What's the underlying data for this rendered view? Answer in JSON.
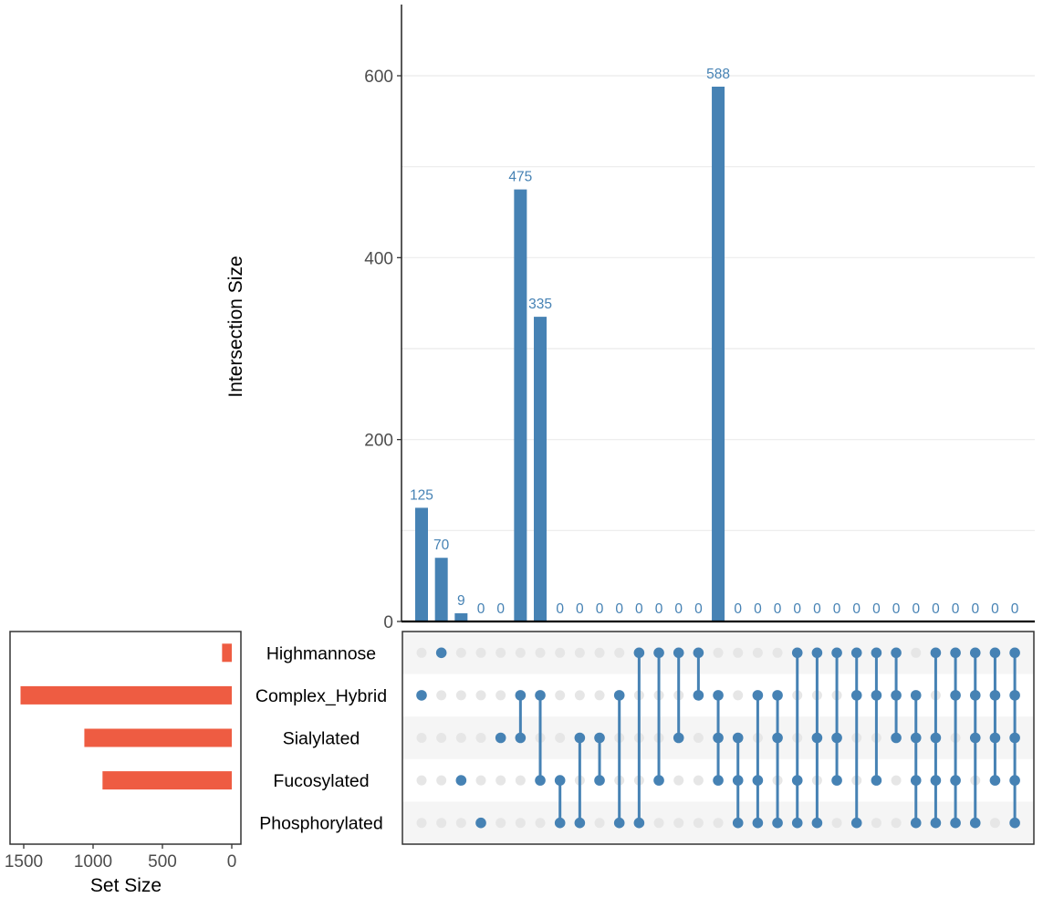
{
  "chart_data": {
    "type": "upset",
    "colors": {
      "intersection_bar": "#4682B4",
      "set_bar": "#EE5C42",
      "dot_active": "#4682B4",
      "dot_inactive": "#E6E6E6",
      "stripe": "#F5F5F5",
      "gridline": "#EBEBEB",
      "axis": "#000000",
      "tick_text": "#4D4D4D"
    },
    "intersection_axis": {
      "ylabel": "Intersection Size",
      "ylim": [
        0,
        680
      ],
      "ticks": [
        0,
        200,
        400,
        600
      ],
      "minor_gridlines": [
        100,
        300,
        500
      ],
      "grid": true
    },
    "set_axis": {
      "xlabel": "Set Size",
      "xlim": [
        1600,
        0
      ],
      "ticks": [
        1500,
        1000,
        500,
        0
      ]
    },
    "sets": [
      {
        "name": "Highmannose",
        "size": 70
      },
      {
        "name": "Complex_Hybrid",
        "size": 1523
      },
      {
        "name": "Sialylated",
        "size": 1063
      },
      {
        "name": "Fucosylated",
        "size": 932
      },
      {
        "name": "Phosphorylated",
        "size": 0
      }
    ],
    "intersections": [
      {
        "sets": [
          "Complex_Hybrid"
        ],
        "value": 125
      },
      {
        "sets": [
          "Highmannose"
        ],
        "value": 70
      },
      {
        "sets": [
          "Fucosylated"
        ],
        "value": 9
      },
      {
        "sets": [
          "Phosphorylated"
        ],
        "value": 0
      },
      {
        "sets": [
          "Sialylated"
        ],
        "value": 0
      },
      {
        "sets": [
          "Complex_Hybrid",
          "Sialylated"
        ],
        "value": 475
      },
      {
        "sets": [
          "Complex_Hybrid",
          "Fucosylated"
        ],
        "value": 335
      },
      {
        "sets": [
          "Fucosylated",
          "Phosphorylated"
        ],
        "value": 0
      },
      {
        "sets": [
          "Sialylated",
          "Phosphorylated"
        ],
        "value": 0
      },
      {
        "sets": [
          "Sialylated",
          "Fucosylated"
        ],
        "value": 0
      },
      {
        "sets": [
          "Complex_Hybrid",
          "Phosphorylated"
        ],
        "value": 0
      },
      {
        "sets": [
          "Highmannose",
          "Phosphorylated"
        ],
        "value": 0
      },
      {
        "sets": [
          "Highmannose",
          "Fucosylated"
        ],
        "value": 0
      },
      {
        "sets": [
          "Highmannose",
          "Sialylated"
        ],
        "value": 0
      },
      {
        "sets": [
          "Highmannose",
          "Complex_Hybrid"
        ],
        "value": 0
      },
      {
        "sets": [
          "Complex_Hybrid",
          "Sialylated",
          "Fucosylated"
        ],
        "value": 588
      },
      {
        "sets": [
          "Sialylated",
          "Fucosylated",
          "Phosphorylated"
        ],
        "value": 0
      },
      {
        "sets": [
          "Complex_Hybrid",
          "Fucosylated",
          "Phosphorylated"
        ],
        "value": 0
      },
      {
        "sets": [
          "Complex_Hybrid",
          "Sialylated",
          "Phosphorylated"
        ],
        "value": 0
      },
      {
        "sets": [
          "Highmannose",
          "Fucosylated",
          "Phosphorylated"
        ],
        "value": 0
      },
      {
        "sets": [
          "Highmannose",
          "Sialylated",
          "Phosphorylated"
        ],
        "value": 0
      },
      {
        "sets": [
          "Highmannose",
          "Sialylated",
          "Fucosylated"
        ],
        "value": 0
      },
      {
        "sets": [
          "Highmannose",
          "Complex_Hybrid",
          "Phosphorylated"
        ],
        "value": 0
      },
      {
        "sets": [
          "Highmannose",
          "Complex_Hybrid",
          "Fucosylated"
        ],
        "value": 0
      },
      {
        "sets": [
          "Highmannose",
          "Complex_Hybrid",
          "Sialylated"
        ],
        "value": 0
      },
      {
        "sets": [
          "Complex_Hybrid",
          "Sialylated",
          "Fucosylated",
          "Phosphorylated"
        ],
        "value": 0
      },
      {
        "sets": [
          "Highmannose",
          "Sialylated",
          "Fucosylated",
          "Phosphorylated"
        ],
        "value": 0
      },
      {
        "sets": [
          "Highmannose",
          "Complex_Hybrid",
          "Fucosylated",
          "Phosphorylated"
        ],
        "value": 0
      },
      {
        "sets": [
          "Highmannose",
          "Complex_Hybrid",
          "Sialylated",
          "Phosphorylated"
        ],
        "value": 0
      },
      {
        "sets": [
          "Highmannose",
          "Complex_Hybrid",
          "Sialylated",
          "Fucosylated"
        ],
        "value": 0
      },
      {
        "sets": [
          "Highmannose",
          "Complex_Hybrid",
          "Sialylated",
          "Fucosylated",
          "Phosphorylated"
        ],
        "value": 0
      }
    ]
  }
}
